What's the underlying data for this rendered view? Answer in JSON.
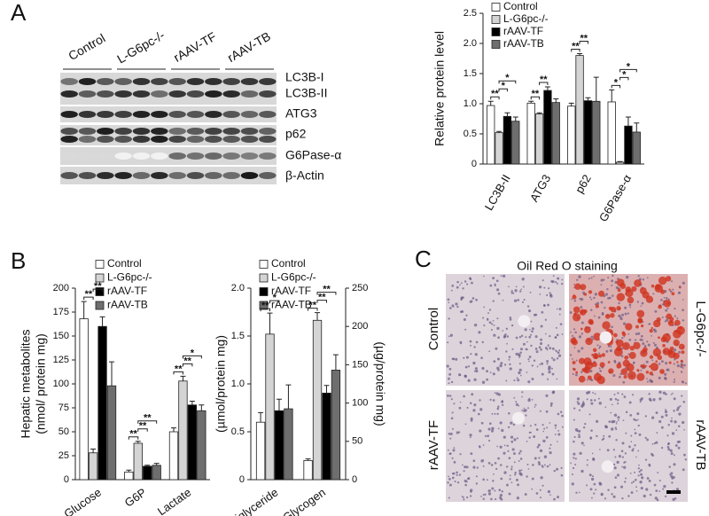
{
  "panels": [
    "A",
    "B",
    "C"
  ],
  "blot": {
    "groups": [
      "Control",
      "L-G6pc-/-",
      "rAAV-TF",
      "rAAV-TB"
    ],
    "bands": [
      "LC3B-I",
      "LC3B-II",
      "ATG3",
      "p62",
      "G6Pase-α",
      "β-Actin"
    ]
  },
  "staining": {
    "title": "Oil Red O staining",
    "labels": [
      "Control",
      "L-G6pc-/-",
      "rAAV-TF",
      "rAAV-TB"
    ]
  },
  "chart_data": [
    {
      "type": "bar",
      "ylabel": "Relative protein level",
      "categories": [
        "LC3B-II",
        "ATG3",
        "p62",
        "G6Pase-α"
      ],
      "series": [
        {
          "name": "Control",
          "color": "#ffffff",
          "values": [
            0.97,
            1.01,
            0.96,
            1.03
          ],
          "errors": [
            0.07,
            0.03,
            0.05,
            0.2
          ]
        },
        {
          "name": "L-G6pc-/-",
          "color": "#d4d4d4",
          "values": [
            0.52,
            0.83,
            1.8,
            0.03
          ],
          "errors": [
            0.02,
            0.02,
            0.03,
            0.01
          ]
        },
        {
          "name": "rAAV-TF",
          "color": "#000000",
          "values": [
            0.79,
            1.22,
            1.05,
            0.63
          ],
          "errors": [
            0.06,
            0.06,
            0.05,
            0.15
          ]
        },
        {
          "name": "rAAV-TB",
          "color": "#6e6e6e",
          "values": [
            0.71,
            1.02,
            1.04,
            0.53
          ],
          "errors": [
            0.07,
            0.06,
            0.4,
            0.15
          ]
        }
      ],
      "ylim": [
        0,
        2.5
      ],
      "yticks": [
        0,
        0.5,
        {
          "value": 1,
          "label": "1.0"
        },
        1.5,
        {
          "value": 2,
          "label": "2.0"
        },
        2.5
      ],
      "annotations": [
        {
          "category": 0,
          "from": 0,
          "to": 1,
          "label": "**"
        },
        {
          "category": 0,
          "from": 1,
          "to": 2,
          "label": "*"
        },
        {
          "category": 0,
          "from": 1,
          "to": 3,
          "label": "*"
        },
        {
          "category": 1,
          "from": 0,
          "to": 1,
          "label": "**"
        },
        {
          "category": 1,
          "from": 1,
          "to": 2,
          "label": "**"
        },
        {
          "category": 2,
          "from": 0,
          "to": 1,
          "label": "**"
        },
        {
          "category": 2,
          "from": 1,
          "to": 2,
          "label": "**"
        },
        {
          "category": 3,
          "from": 0,
          "to": 1,
          "label": "*"
        },
        {
          "category": 3,
          "from": 1,
          "to": 2,
          "label": "*"
        },
        {
          "category": 3,
          "from": 1,
          "to": 3,
          "label": "*"
        }
      ]
    },
    {
      "type": "bar",
      "ylabel": [
        "Hepatic metabolites",
        "(nmol/ protein mg)"
      ],
      "categories": [
        "Glucose",
        "G6P",
        "Lactate"
      ],
      "series": [
        {
          "name": "Control",
          "color": "#ffffff",
          "values": [
            168,
            8,
            50
          ],
          "errors": [
            18,
            2,
            4
          ]
        },
        {
          "name": "L-G6pc-/-",
          "color": "#d4d4d4",
          "values": [
            28,
            38,
            103
          ],
          "errors": [
            4,
            2,
            5
          ]
        },
        {
          "name": "rAAV-TF",
          "color": "#000000",
          "values": [
            160,
            14,
            78
          ],
          "errors": [
            10,
            1,
            4
          ]
        },
        {
          "name": "rAAV-TB",
          "color": "#6e6e6e",
          "values": [
            98,
            15,
            72
          ],
          "errors": [
            25,
            2,
            6
          ]
        }
      ],
      "ylim": [
        0,
        200
      ],
      "yticks": [
        0,
        25,
        50,
        75,
        100,
        125,
        150,
        175,
        200
      ],
      "annotations": [
        {
          "category": 0,
          "from": 0,
          "to": 1,
          "label": "**"
        },
        {
          "category": 0,
          "from": 1,
          "to": 2,
          "label": "**"
        },
        {
          "category": 1,
          "from": 0,
          "to": 1,
          "label": "**"
        },
        {
          "category": 1,
          "from": 1,
          "to": 2,
          "label": "**"
        },
        {
          "category": 1,
          "from": 1,
          "to": 3,
          "label": "**"
        },
        {
          "category": 2,
          "from": 0,
          "to": 1,
          "label": "**"
        },
        {
          "category": 2,
          "from": 1,
          "to": 2,
          "label": "**"
        },
        {
          "category": 2,
          "from": 1,
          "to": 3,
          "label": "*"
        }
      ]
    },
    {
      "type": "bar",
      "ylabel": "(µmol/protein mg)",
      "y2label": "(µg/protein mg)",
      "categories": [
        "Triglyceride",
        "Glycogen"
      ],
      "category_axes": [
        "y",
        "y2"
      ],
      "series": [
        {
          "name": "Control",
          "color": "#ffffff",
          "values": [
            0.6,
            25
          ],
          "errors": [
            0.1,
            2
          ]
        },
        {
          "name": "L-G6pc-/-",
          "color": "#d4d4d4",
          "values": [
            1.52,
            208
          ],
          "errors": [
            0.22,
            10
          ]
        },
        {
          "name": "rAAV-TF",
          "color": "#000000",
          "values": [
            0.72,
            113
          ],
          "errors": [
            0.12,
            10
          ]
        },
        {
          "name": "rAAV-TB",
          "color": "#6e6e6e",
          "values": [
            0.74,
            143
          ],
          "errors": [
            0.25,
            20
          ]
        }
      ],
      "ylim": [
        0,
        2
      ],
      "yticks": [
        0,
        0.5,
        {
          "value": 1,
          "label": "1.0"
        },
        1.5,
        {
          "value": 2,
          "label": "2.0"
        }
      ],
      "y2lim": [
        0,
        250
      ],
      "y2ticks": [
        0,
        50,
        100,
        150,
        200,
        250
      ],
      "annotations": [
        {
          "category": 0,
          "from": 0,
          "to": 1,
          "label": "**"
        },
        {
          "category": 0,
          "from": 1,
          "to": 2,
          "label": "*"
        },
        {
          "category": 1,
          "from": 0,
          "to": 1,
          "label": "**"
        },
        {
          "category": 1,
          "from": 1,
          "to": 2,
          "label": "**"
        },
        {
          "category": 1,
          "from": 1,
          "to": 3,
          "label": "**"
        }
      ]
    }
  ]
}
